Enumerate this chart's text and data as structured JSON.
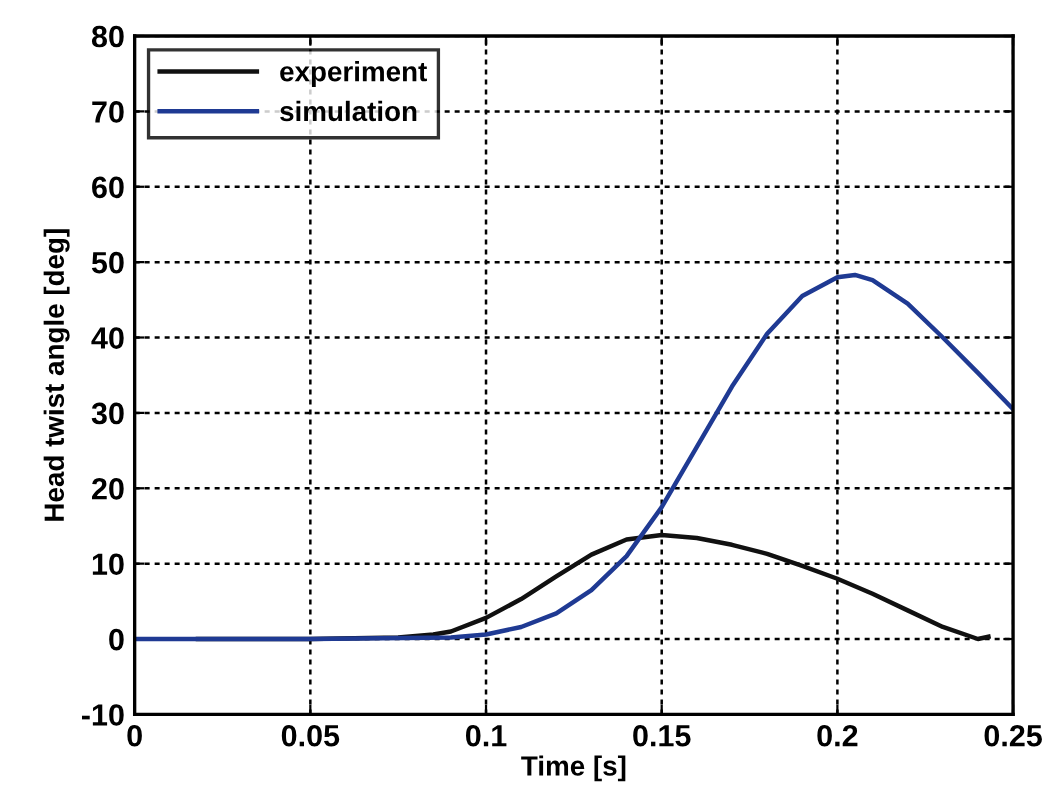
{
  "chart_data": {
    "type": "line",
    "xlabel": "Time [s]",
    "ylabel": "Head twist angle [deg]",
    "xlim": [
      0,
      0.25
    ],
    "xticks": [
      0,
      0.05,
      0.1,
      0.15,
      0.2,
      0.25
    ],
    "ylim": [
      -10,
      80
    ],
    "yticks": [
      -10,
      0,
      10,
      20,
      30,
      40,
      50,
      60,
      70,
      80
    ],
    "grid": true,
    "legend": "top left",
    "line_style": "solid",
    "marker": "none",
    "series": [
      {
        "name": "experiment",
        "color": "#111111",
        "x": [
          0.018,
          0.05,
          0.075,
          0.085,
          0.09,
          0.1,
          0.11,
          0.12,
          0.13,
          0.14,
          0.15,
          0.16,
          0.17,
          0.18,
          0.19,
          0.2,
          0.21,
          0.22,
          0.23,
          0.24,
          0.243
        ],
        "values": [
          0,
          0,
          0.2,
          0.6,
          1,
          2.8,
          5.3,
          8.3,
          11.2,
          13.2,
          13.8,
          13.4,
          12.5,
          11.3,
          9.7,
          8,
          6,
          3.8,
          1.6,
          0,
          0.3
        ]
      },
      {
        "name": "simulation",
        "color": "#1f3a93",
        "x": [
          0,
          0.05,
          0.09,
          0.1,
          0.11,
          0.12,
          0.13,
          0.14,
          0.15,
          0.16,
          0.17,
          0.18,
          0.19,
          0.2,
          0.205,
          0.21,
          0.22,
          0.23,
          0.24,
          0.25
        ],
        "values": [
          0,
          0,
          0.2,
          0.6,
          1.6,
          3.4,
          6.5,
          11,
          17.5,
          25.5,
          33.5,
          40.5,
          45.5,
          48,
          48.3,
          47.6,
          44.5,
          40,
          35.3,
          30.5
        ]
      }
    ]
  }
}
